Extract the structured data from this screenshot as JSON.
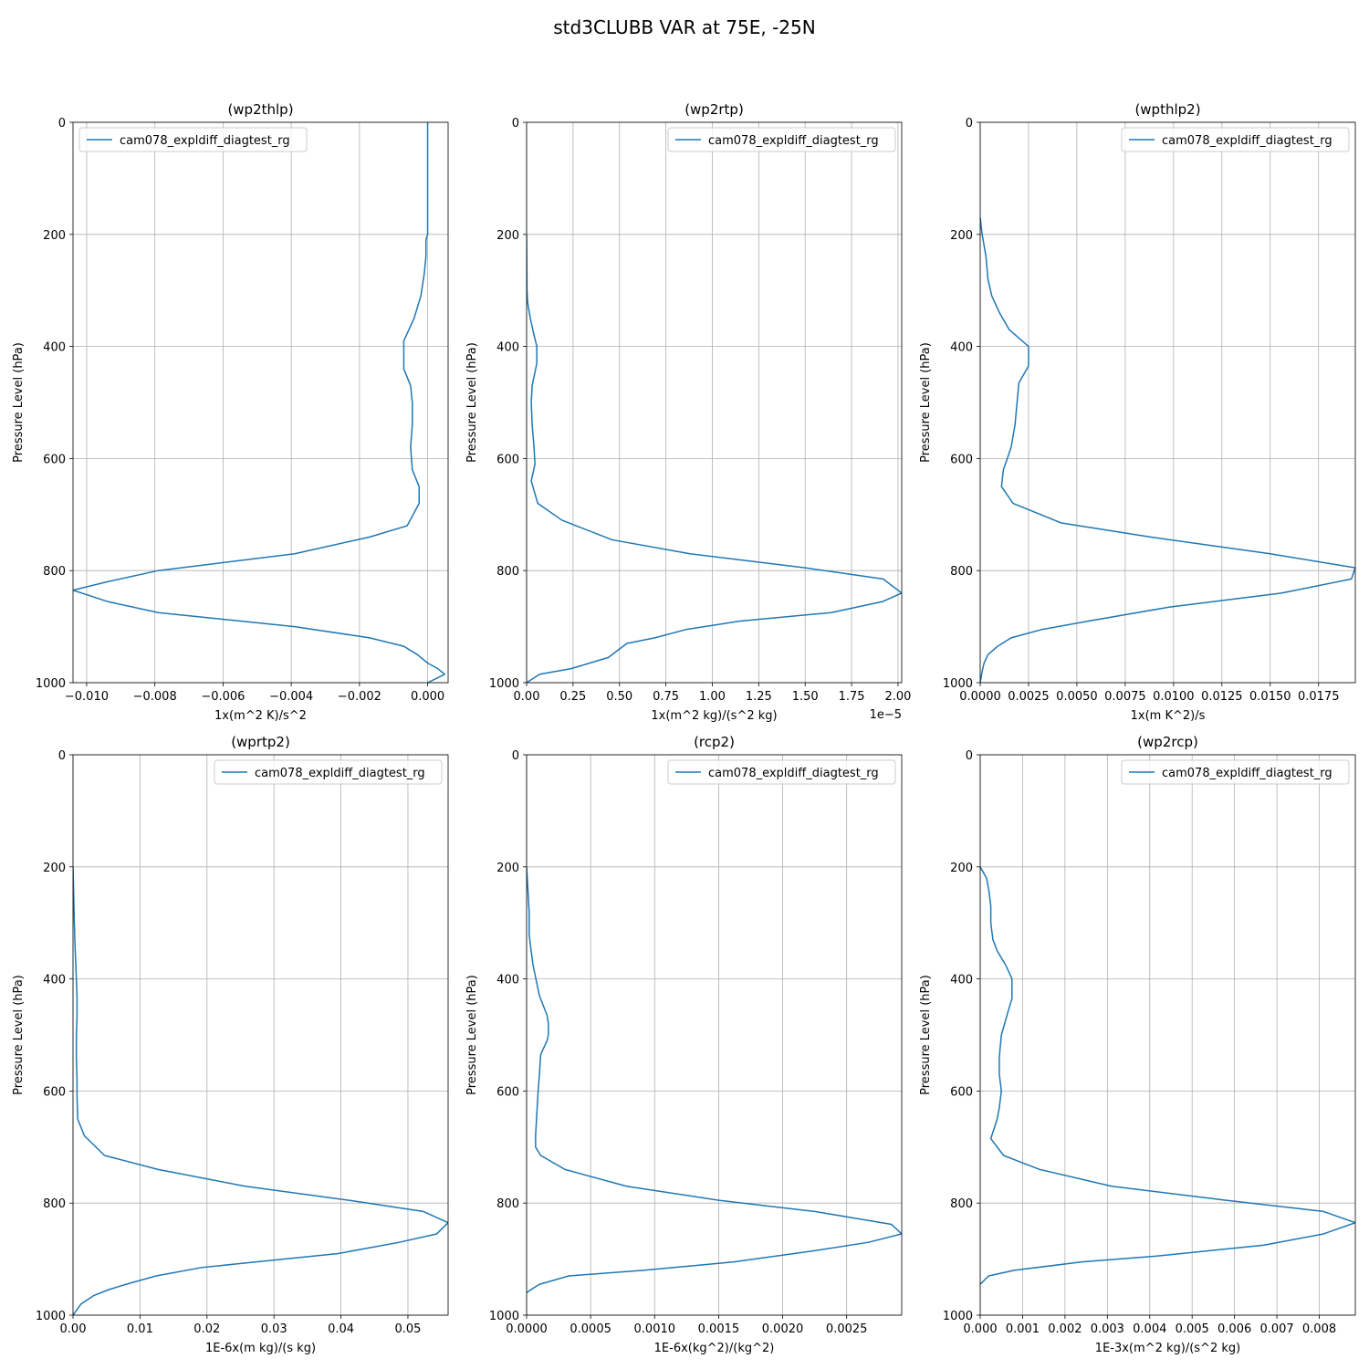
{
  "figure": {
    "title": "std3CLUBB VAR at 75E, -25N"
  },
  "colors": {
    "series": "#1f77b4",
    "grid": "#b0b0b0"
  },
  "chart_data": [
    {
      "type": "line",
      "title": "(wp2thlp)",
      "xlabel": "1x(m^2 K)/s^2",
      "ylabel": "Pressure Level (hPa)",
      "xlim": [
        -0.0104,
        0.0006
      ],
      "ylim": [
        1000,
        0
      ],
      "xticks": [
        -0.01,
        -0.008,
        -0.006,
        -0.004,
        -0.002,
        0.0
      ],
      "xtick_labels": [
        "−0.010",
        "−0.008",
        "−0.006",
        "−0.004",
        "−0.002",
        "0.000"
      ],
      "offset_label": "",
      "yticks": [
        0,
        200,
        400,
        600,
        800,
        1000
      ],
      "grid": true,
      "legend_loc": "upper-left",
      "series": [
        {
          "name": "cam078_expldiff_diagtest_rg",
          "x": [
            0.0,
            0.0,
            0.0,
            0.0,
            -5e-05,
            -5e-05,
            -0.0001,
            -0.00015,
            -0.0002,
            -0.0004,
            -0.0007,
            -0.0007,
            -0.0005,
            -0.00045,
            -0.00045,
            -0.0005,
            -0.00045,
            -0.00025,
            -0.00025,
            -0.0006,
            -0.0017,
            -0.0039,
            -0.0079,
            -0.0094,
            -0.0104,
            -0.0094,
            -0.0079,
            -0.0039,
            -0.0017,
            -0.0007,
            -0.0003,
            0.0,
            0.0003,
            0.0005,
            0.0
          ],
          "y": [
            0,
            100,
            180,
            200,
            210,
            240,
            270,
            290,
            310,
            350,
            390,
            440,
            470,
            500,
            540,
            580,
            620,
            650,
            680,
            720,
            740,
            770,
            800,
            820,
            835,
            855,
            875,
            900,
            920,
            935,
            950,
            965,
            975,
            985,
            1000
          ]
        }
      ]
    },
    {
      "type": "line",
      "title": "(wp2rtp)",
      "xlabel": "1x(m^2 kg)/(s^2 kg)",
      "ylabel": "Pressure Level (hPa)",
      "xlim": [
        0,
        2.02e-05
      ],
      "ylim": [
        1000,
        0
      ],
      "xticks": [
        0,
        2.5e-06,
        5e-06,
        7.5e-06,
        1e-05,
        1.25e-05,
        1.5e-05,
        1.75e-05,
        2e-05
      ],
      "xtick_labels": [
        "0.00",
        "0.25",
        "0.50",
        "0.75",
        "1.00",
        "1.25",
        "1.50",
        "1.75",
        "2.00"
      ],
      "offset_label": "1e−5",
      "yticks": [
        0,
        200,
        400,
        600,
        800,
        1000
      ],
      "grid": true,
      "legend_loc": "upper-right",
      "series": [
        {
          "name": "cam078_expldiff_diagtest_rg",
          "x": [
            0.0,
            1e-08,
            2e-08,
            5e-08,
            2e-07,
            4e-07,
            5.5e-07,
            5.5e-07,
            3e-07,
            2.5e-07,
            3e-07,
            4e-07,
            4.5e-07,
            2.5e-07,
            6e-07,
            1.9e-06,
            4.6e-06,
            8.8e-06,
            1.5e-05,
            1.92e-05,
            2.02e-05,
            1.92e-05,
            1.64e-05,
            1.15e-05,
            8.6e-06,
            6.9e-06,
            5.4e-06,
            4.4e-06,
            3.4e-06,
            2.4e-06,
            7e-07,
            0.0
          ],
          "y": [
            200,
            250,
            300,
            320,
            350,
            380,
            400,
            430,
            470,
            500,
            540,
            580,
            610,
            640,
            680,
            710,
            745,
            770,
            795,
            815,
            840,
            855,
            875,
            890,
            905,
            920,
            930,
            955,
            965,
            975,
            985,
            1000
          ]
        }
      ]
    },
    {
      "type": "line",
      "title": "(wpthlp2)",
      "xlabel": "1x(m K^2)/s",
      "ylabel": "Pressure Level (hPa)",
      "xlim": [
        0,
        0.0194
      ],
      "ylim": [
        1000,
        0
      ],
      "xticks": [
        0,
        0.0025,
        0.005,
        0.0075,
        0.01,
        0.0125,
        0.015,
        0.0175
      ],
      "xtick_labels": [
        "0.0000",
        "0.0025",
        "0.0050",
        "0.0075",
        "0.0100",
        "0.0125",
        "0.0150",
        "0.0175"
      ],
      "offset_label": "",
      "yticks": [
        0,
        200,
        400,
        600,
        800,
        1000
      ],
      "grid": true,
      "legend_loc": "upper-right",
      "series": [
        {
          "name": "cam078_expldiff_diagtest_rg",
          "x": [
            0.0,
            0.0001,
            0.0003,
            0.0004,
            0.0006,
            0.001,
            0.0015,
            0.0025,
            0.0025,
            0.002,
            0.0018,
            0.0016,
            0.0012,
            0.0011,
            0.0017,
            0.0042,
            0.0088,
            0.015,
            0.0194,
            0.0192,
            0.0156,
            0.0098,
            0.0056,
            0.0032,
            0.0016,
            0.0009,
            0.0004,
            0.0002,
            0.0001,
            0.0
          ],
          "y": [
            170,
            200,
            240,
            280,
            310,
            340,
            370,
            400,
            435,
            465,
            540,
            580,
            620,
            650,
            680,
            715,
            740,
            770,
            795,
            815,
            840,
            865,
            890,
            905,
            920,
            935,
            950,
            965,
            980,
            1000
          ]
        }
      ]
    },
    {
      "type": "line",
      "title": "(wprtp2)",
      "xlabel": "1E-6x(m kg)/(s kg)",
      "ylabel": "Pressure Level (hPa)",
      "xlim": [
        0,
        0.056
      ],
      "ylim": [
        1000,
        0
      ],
      "xticks": [
        0,
        0.01,
        0.02,
        0.03,
        0.04,
        0.05
      ],
      "xtick_labels": [
        "0.00",
        "0.01",
        "0.02",
        "0.03",
        "0.04",
        "0.05"
      ],
      "offset_label": "",
      "yticks": [
        0,
        200,
        400,
        600,
        800,
        1000
      ],
      "grid": true,
      "legend_loc": "upper-right",
      "series": [
        {
          "name": "cam078_expldiff_diagtest_rg",
          "x": [
            0.0,
            0.0001,
            0.0002,
            0.0003,
            0.0004,
            0.0005,
            0.0006,
            0.0006,
            0.0005,
            0.0005,
            0.0006,
            0.0006,
            0.0007,
            0.0017,
            0.0047,
            0.0127,
            0.0257,
            0.0412,
            0.0523,
            0.056,
            0.0543,
            0.0487,
            0.0396,
            0.0192,
            0.0124,
            0.0079,
            0.0052,
            0.0031,
            0.0012,
            0.0
          ],
          "y": [
            200,
            250,
            300,
            340,
            370,
            400,
            430,
            470,
            500,
            540,
            580,
            610,
            650,
            680,
            715,
            740,
            770,
            795,
            815,
            835,
            855,
            870,
            890,
            915,
            930,
            945,
            955,
            965,
            980,
            1000
          ]
        }
      ]
    },
    {
      "type": "line",
      "title": "(rcp2)",
      "xlabel": "1E-6x(kg^2)/(kg^2)",
      "ylabel": "Pressure Level (hPa)",
      "xlim": [
        0,
        0.00293
      ],
      "ylim": [
        1000,
        0
      ],
      "xticks": [
        0,
        0.0005,
        0.001,
        0.0015,
        0.002,
        0.0025
      ],
      "xtick_labels": [
        "0.0000",
        "0.0005",
        "0.0010",
        "0.0015",
        "0.0020",
        "0.0025"
      ],
      "offset_label": "",
      "yticks": [
        0,
        200,
        400,
        600,
        800,
        1000
      ],
      "grid": true,
      "legend_loc": "upper-right",
      "series": [
        {
          "name": "cam078_expldiff_diagtest_rg",
          "x": [
            0.0,
            1e-05,
            2e-05,
            2e-05,
            3e-05,
            5e-05,
            0.0001,
            0.00016,
            0.00017,
            0.00017,
            0.00016,
            0.00011,
            0.0001,
            9e-05,
            8e-05,
            7e-05,
            7e-05,
            0.00011,
            0.0003,
            0.00078,
            0.0015,
            0.00225,
            0.00285,
            0.00293,
            0.00267,
            0.00225,
            0.00162,
            0.00091,
            0.00033,
            0.0001,
            3e-05,
            0.0
          ],
          "y": [
            200,
            240,
            280,
            320,
            340,
            375,
            430,
            465,
            480,
            500,
            510,
            535,
            570,
            600,
            640,
            680,
            700,
            715,
            740,
            770,
            795,
            815,
            838,
            855,
            870,
            885,
            905,
            920,
            930,
            945,
            955,
            960
          ]
        }
      ]
    },
    {
      "type": "line",
      "title": "(wp2rcp)",
      "xlabel": "1E-3x(m^2 kg)/(s^2 kg)",
      "ylabel": "Pressure Level (hPa)",
      "xlim": [
        0,
        0.00885
      ],
      "ylim": [
        1000,
        0
      ],
      "xticks": [
        0,
        0.001,
        0.002,
        0.003,
        0.004,
        0.005,
        0.006,
        0.007,
        0.008
      ],
      "xtick_labels": [
        "0.000",
        "0.001",
        "0.002",
        "0.003",
        "0.004",
        "0.005",
        "0.006",
        "0.007",
        "0.008"
      ],
      "offset_label": "",
      "yticks": [
        0,
        200,
        400,
        600,
        800,
        1000
      ],
      "grid": true,
      "legend_loc": "upper-right",
      "series": [
        {
          "name": "cam078_expldiff_diagtest_rg",
          "x": [
            0.0,
            0.00015,
            0.0002,
            0.00025,
            0.00025,
            0.0003,
            0.0004,
            0.0006,
            0.00075,
            0.00075,
            0.00065,
            0.0005,
            0.00045,
            0.00045,
            0.0005,
            0.00045,
            0.0004,
            0.00025,
            0.00055,
            0.0014,
            0.0031,
            0.0058,
            0.0081,
            0.00885,
            0.0081,
            0.0067,
            0.0041,
            0.0024,
            0.0008,
            0.0002,
            0.0
          ],
          "y": [
            200,
            220,
            240,
            270,
            300,
            330,
            350,
            375,
            400,
            435,
            460,
            500,
            540,
            570,
            600,
            630,
            650,
            685,
            715,
            740,
            770,
            795,
            815,
            835,
            855,
            875,
            895,
            905,
            920,
            930,
            945
          ]
        }
      ]
    }
  ]
}
